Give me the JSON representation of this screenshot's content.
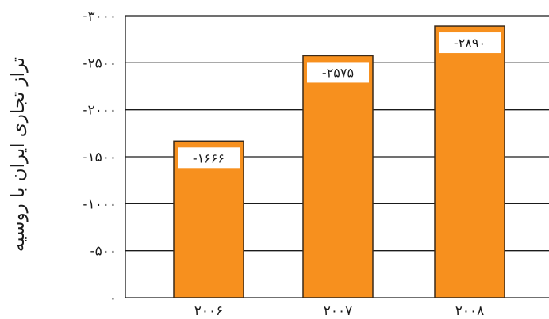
{
  "chart_data": {
    "type": "bar",
    "title": "",
    "xlabel": "",
    "ylabel": "تراز تجاری ایران با روسیه",
    "categories": [
      "۲۰۰۶",
      "۲۰۰۷",
      "۲۰۰۸"
    ],
    "values": [
      -1666,
      -2575,
      -2890
    ],
    "data_labels": [
      "-۱۶۶۶",
      "-۲۵۷۵",
      "-۲۸۹۰"
    ],
    "ylim": [
      0,
      -3000
    ],
    "yticks": [
      0,
      -500,
      -1000,
      -1500,
      -2000,
      -2500,
      -3000
    ],
    "ytick_labels": [
      "۰",
      "-۵۰۰",
      "-۱۰۰۰",
      "-۱۵۰۰",
      "-۲۰۰۰",
      "-۲۵۰۰",
      "-۳۰۰۰"
    ],
    "grid": true,
    "colors": {
      "bar_fill": "#f7901e",
      "bar_stroke": "#3a2a1a",
      "grid": "#1a1a1a",
      "label_box": "#ffffff"
    }
  }
}
